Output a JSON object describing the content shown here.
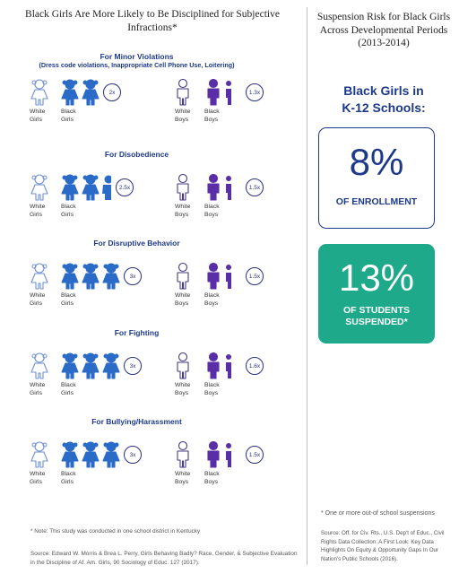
{
  "left": {
    "title": "Black Girls Are More Likely to Be Disciplined for Subjective Infractions*",
    "sections": [
      {
        "heading": "For Minor Violations",
        "subheading": "(Dress code violations, Inappropriate Cell Phone Use, Loitering)",
        "girls_multiplier": "2x",
        "boys_multiplier": "1.3x",
        "girls_ratio": 2,
        "boys_ratio": 1.3
      },
      {
        "heading": "For Disobedience",
        "subheading": "",
        "girls_multiplier": "2.5x",
        "boys_multiplier": "1.5x",
        "girls_ratio": 2.5,
        "boys_ratio": 1.5
      },
      {
        "heading": "For Disruptive Behavior",
        "subheading": "",
        "girls_multiplier": "3x",
        "boys_multiplier": "1.5x",
        "girls_ratio": 3,
        "boys_ratio": 1.5
      },
      {
        "heading": "For Fighting",
        "subheading": "",
        "girls_multiplier": "3x",
        "boys_multiplier": "1.6x",
        "girls_ratio": 3,
        "boys_ratio": 1.6
      },
      {
        "heading": "For Bullying/Harassment",
        "subheading": "",
        "girls_multiplier": "3x",
        "boys_multiplier": "1.5x",
        "girls_ratio": 3,
        "boys_ratio": 1.5
      }
    ],
    "labels": {
      "white_girls_1": "White",
      "white_girls_2": "Girls",
      "black_girls_1": "Black",
      "black_girls_2": "Girls",
      "white_boys_1": "White",
      "white_boys_2": "Boys",
      "black_boys_1": "Black",
      "black_boys_2": "Boys"
    },
    "note": "* Note: This study was conducted in one school district in Kentucky",
    "source": "Source: Edward W. Morris & Brea L. Perry, Girls Behaving Badly? Race, Gender, & Subjective Evaluation in the Discipline of Af. Am. Girls, 90 Sociology of Educ. 127 (2017)."
  },
  "right": {
    "title": "Suspension Risk for Black Girls Across Developmental Periods (2013-2014)",
    "subtitle_1": "Black Girls in",
    "subtitle_2": "K-12 Schools:",
    "enrollment_value": "8%",
    "enrollment_label": "OF ENROLLMENT",
    "suspended_value": "13%",
    "suspended_label_1": "OF STUDENTS",
    "suspended_label_2": "SUSPENDED*",
    "note": "* One or more out-of school suspensions",
    "source": "Source: Off. for Civ. Rts., U.S. Dep't of Educ., Civil Rights Data Collection: A First Look: Key Data Highlights On Equity & Opportunity Gaps In Our Nation's Public Schools (2016)."
  },
  "colors": {
    "navy": "#1d3a8a",
    "girl_blue": "#2b6bc8",
    "boy_purple": "#5a2ea6",
    "outline_blue": "#6d8fd6",
    "outline_purple": "#4a3a8a",
    "teal": "#1eaa8a"
  }
}
